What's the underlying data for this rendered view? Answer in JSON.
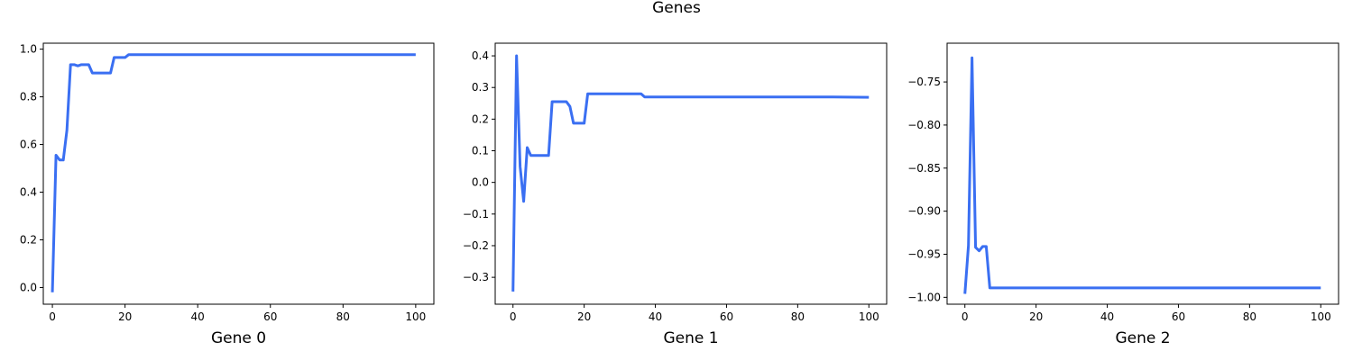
{
  "figure": {
    "title": "Genes"
  },
  "colors": {
    "line": "#3a6ff2",
    "frame": "#000000",
    "background": "#ffffff"
  },
  "chart_data": [
    {
      "type": "line",
      "title": "",
      "xlabel": "Gene 0",
      "ylabel": "",
      "xlim": [
        -2.5,
        105
      ],
      "ylim": [
        -0.07,
        1.025
      ],
      "xticks": [
        0,
        20,
        40,
        60,
        80,
        100
      ],
      "xtick_labels": [
        "0",
        "20",
        "40",
        "60",
        "80",
        "100"
      ],
      "yticks": [
        0.0,
        0.2,
        0.4,
        0.6,
        0.8,
        1.0
      ],
      "ytick_labels": [
        "0.0",
        "0.2",
        "0.4",
        "0.6",
        "0.8",
        "1.0"
      ],
      "grid": false,
      "series": [
        {
          "x": [
            0,
            1,
            2,
            3,
            4,
            5,
            6,
            7,
            8,
            9,
            10,
            11,
            12,
            13,
            14,
            15,
            16,
            17,
            18,
            19,
            20,
            21,
            22,
            30,
            40,
            50,
            60,
            70,
            80,
            90,
            100
          ],
          "y": [
            -0.02,
            0.555,
            0.535,
            0.535,
            0.66,
            0.935,
            0.935,
            0.93,
            0.935,
            0.935,
            0.935,
            0.9,
            0.9,
            0.9,
            0.9,
            0.9,
            0.9,
            0.965,
            0.965,
            0.965,
            0.965,
            0.977,
            0.977,
            0.977,
            0.977,
            0.977,
            0.977,
            0.977,
            0.977,
            0.977,
            0.977
          ]
        }
      ]
    },
    {
      "type": "line",
      "title": "",
      "xlabel": "Gene 1",
      "ylabel": "",
      "xlim": [
        -5,
        105
      ],
      "ylim": [
        -0.385,
        0.44
      ],
      "xticks": [
        0,
        20,
        40,
        60,
        80,
        100
      ],
      "xtick_labels": [
        "0",
        "20",
        "40",
        "60",
        "80",
        "100"
      ],
      "yticks": [
        -0.3,
        -0.2,
        -0.1,
        0.0,
        0.1,
        0.2,
        0.3,
        0.4
      ],
      "ytick_labels": [
        "−0.3",
        "−0.2",
        "−0.1",
        "0.0",
        "0.1",
        "0.2",
        "0.3",
        "0.4"
      ],
      "grid": false,
      "series": [
        {
          "x": [
            0,
            1,
            2,
            3,
            4,
            5,
            6,
            7,
            8,
            9,
            10,
            11,
            12,
            13,
            14,
            15,
            16,
            17,
            18,
            19,
            20,
            21,
            22,
            30,
            36,
            37,
            40,
            50,
            60,
            70,
            80,
            90,
            100
          ],
          "y": [
            -0.345,
            0.4,
            0.05,
            -0.06,
            0.11,
            0.085,
            0.085,
            0.085,
            0.085,
            0.085,
            0.085,
            0.255,
            0.255,
            0.255,
            0.255,
            0.255,
            0.24,
            0.187,
            0.187,
            0.187,
            0.187,
            0.28,
            0.28,
            0.28,
            0.28,
            0.27,
            0.27,
            0.27,
            0.27,
            0.27,
            0.27,
            0.27,
            0.269
          ]
        }
      ]
    },
    {
      "type": "line",
      "title": "",
      "xlabel": "Gene 2",
      "ylabel": "",
      "xlim": [
        -5,
        105
      ],
      "ylim": [
        -1.008,
        -0.705
      ],
      "xticks": [
        0,
        20,
        40,
        60,
        80,
        100
      ],
      "xtick_labels": [
        "0",
        "20",
        "40",
        "60",
        "80",
        "100"
      ],
      "yticks": [
        -1.0,
        -0.95,
        -0.9,
        -0.85,
        -0.8,
        -0.75
      ],
      "ytick_labels": [
        "−1.00",
        "−0.95",
        "−0.90",
        "−0.85",
        "−0.80",
        "−0.75"
      ],
      "grid": false,
      "series": [
        {
          "x": [
            0,
            1,
            2,
            3,
            4,
            5,
            6,
            7,
            8,
            10,
            20,
            30,
            40,
            50,
            60,
            70,
            80,
            90,
            100
          ],
          "y": [
            -0.996,
            -0.94,
            -0.722,
            -0.942,
            -0.946,
            -0.941,
            -0.941,
            -0.989,
            -0.989,
            -0.989,
            -0.989,
            -0.989,
            -0.989,
            -0.989,
            -0.989,
            -0.989,
            -0.989,
            -0.989,
            -0.989
          ]
        }
      ]
    }
  ]
}
